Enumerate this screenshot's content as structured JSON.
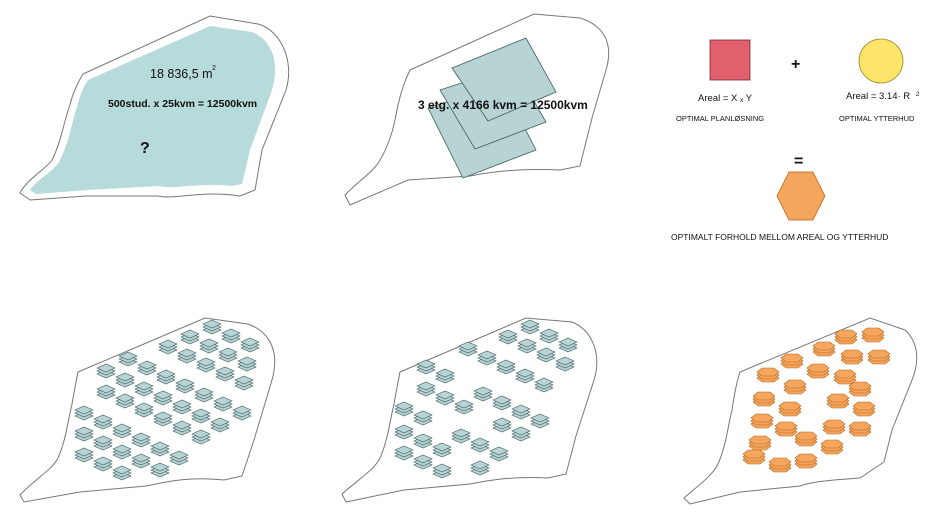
{
  "panel1": {
    "area_value": "18 836,5 m",
    "area_sup": "2",
    "calc": "500stud. x 25kvm = 12500kvm",
    "question": "?"
  },
  "panel2": {
    "calc": "3 etg. x 4166 kvm = 12500kvm"
  },
  "legend": {
    "plus": "+",
    "equals": "=",
    "square_formula": "Areal = X",
    "square_formula_x": "x",
    "square_formula_y": "Y",
    "circle_formula": "Areal = 3.14· R",
    "circle_formula_sup": "2",
    "square_caption": "OPTIMAL PLANLØSNING",
    "circle_caption": "OPTIMAL YTTERHUD",
    "result_caption": "OPTIMALT FORHOLD MELLOM AREAL OG YTTERHUD"
  },
  "colors": {
    "site_fill": "#b7dada",
    "site_stroke": "#777777",
    "block_fill": "#b7d3d3",
    "block_stroke": "#3e5e5e",
    "square_fill": "#e0606e",
    "circle_fill": "#ffe46a",
    "hex_fill": "#f5a55c",
    "hex_stroke": "#b5661e"
  }
}
